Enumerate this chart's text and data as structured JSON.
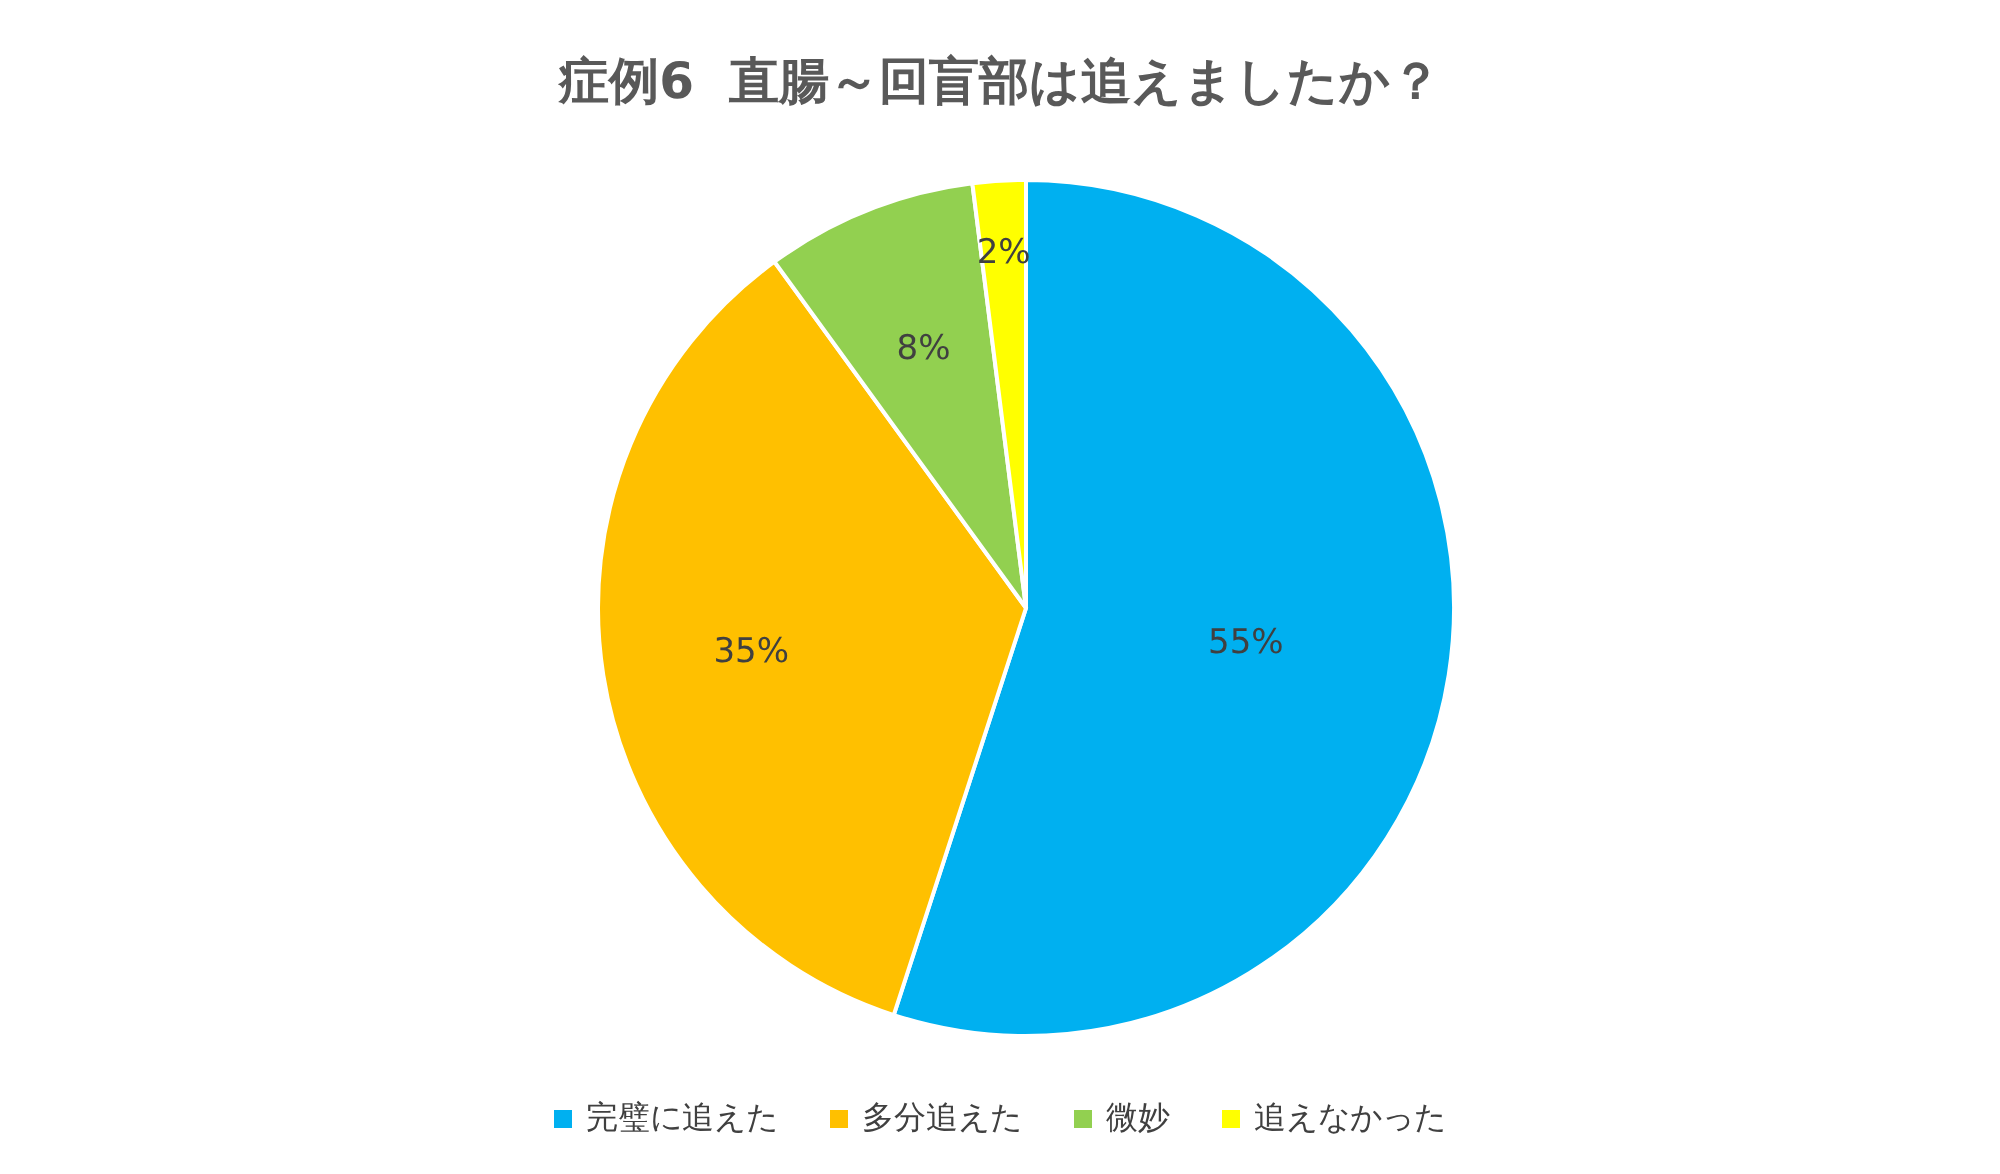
{
  "chart_data": {
    "type": "pie",
    "title": "症例6  直腸～回盲部は追えましたか？",
    "categories": [
      "完璧に追えた",
      "多分追えた",
      "微妙",
      "追えなかった"
    ],
    "values": [
      55,
      35,
      8,
      2
    ],
    "colors": [
      "#00b0f0",
      "#ffc000",
      "#92d050",
      "#ffff00"
    ],
    "value_labels": [
      "55%",
      "35%",
      "8%",
      "2%"
    ],
    "legend": "bottom"
  }
}
